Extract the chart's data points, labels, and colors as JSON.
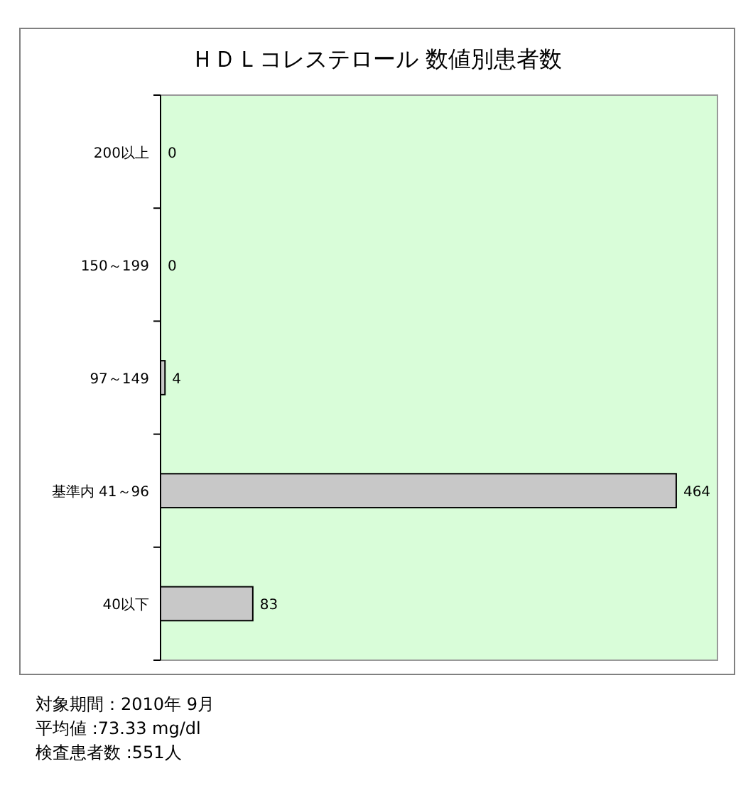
{
  "chart_data": {
    "type": "bar",
    "orientation": "horizontal",
    "title": "ＨＤＬコレステロール 数値別患者数",
    "categories": [
      "200以上",
      "150～199",
      "97～149",
      "基準内 41～96",
      "40以下"
    ],
    "values": [
      0,
      0,
      4,
      464,
      83
    ],
    "color": "#c8c8c8",
    "data_labels": true,
    "annotations": [
      "対象期間：2010年 9月",
      "平均値 :73.33 mg/dl",
      "検査患者数 :551人"
    ]
  }
}
